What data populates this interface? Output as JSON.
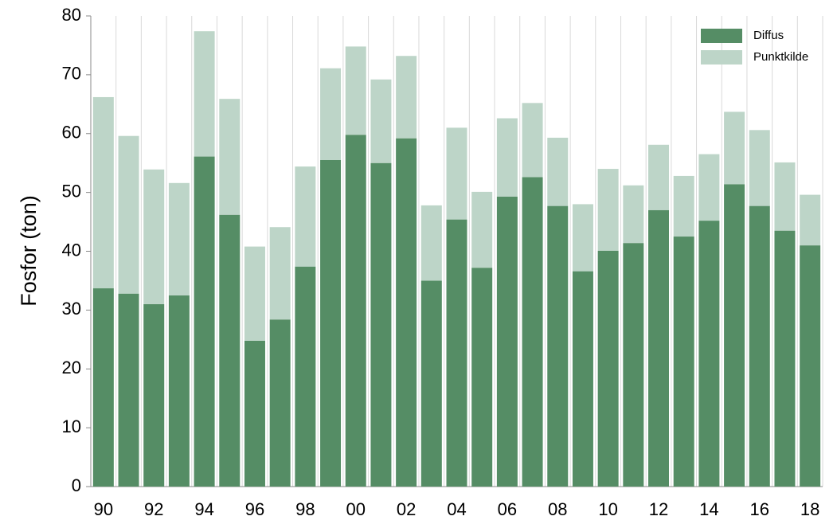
{
  "chart_data": {
    "type": "stacked_bar",
    "y_label": "Fosfor (ton)",
    "categories": [
      "90",
      null,
      "92",
      null,
      "94",
      null,
      "96",
      null,
      "98",
      null,
      "00",
      null,
      "02",
      null,
      "04",
      null,
      "06",
      null,
      "08",
      null,
      "10",
      null,
      "12",
      null,
      "14",
      null,
      "16",
      null,
      "18"
    ],
    "series": [
      {
        "name": "Diffus",
        "color": "#558d65",
        "values": [
          33.7,
          32.8,
          31.0,
          32.5,
          56.1,
          46.2,
          24.8,
          28.4,
          37.4,
          55.5,
          59.8,
          55.0,
          59.2,
          35.0,
          45.4,
          37.2,
          49.3,
          52.6,
          47.7,
          36.6,
          40.1,
          41.4,
          47.0,
          42.5,
          45.2,
          51.4,
          47.7,
          43.5,
          41.0
        ]
      },
      {
        "name": "Punktkilde",
        "color": "#bdd5c8",
        "values": [
          32.5,
          26.8,
          22.9,
          19.1,
          21.3,
          19.7,
          16.0,
          15.7,
          17.0,
          15.6,
          15.0,
          14.2,
          14.0,
          12.8,
          15.6,
          12.9,
          13.3,
          12.6,
          11.6,
          11.4,
          13.9,
          9.8,
          11.1,
          10.3,
          11.3,
          12.3,
          12.9,
          11.6,
          8.6
        ]
      }
    ],
    "ylim": [
      0,
      80
    ],
    "yticks": [
      0,
      10,
      20,
      30,
      40,
      50,
      60,
      70,
      80
    ],
    "legend": "top-right"
  }
}
